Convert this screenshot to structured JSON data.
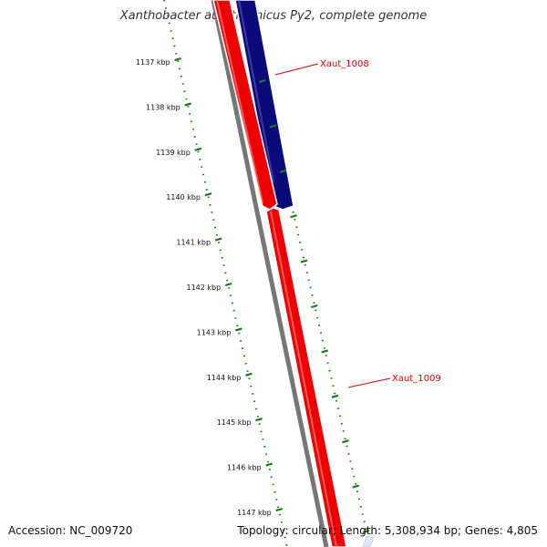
{
  "title": "Xanthobacter autotrophicus Py2, complete genome",
  "footer": {
    "accession": "Accession: NC_009720",
    "summary": "Topology: circular; Length: 5,308,934 bp; Genes: 4,805"
  },
  "ticks": [
    "1137 kbp",
    "1138 kbp",
    "1139 kbp",
    "1140 kbp",
    "1141 kbp",
    "1142 kbp",
    "1143 kbp",
    "1144 kbp",
    "1145 kbp",
    "1146 kbp",
    "1147 kbp"
  ],
  "genes": [
    {
      "name": "Xaut_1008",
      "strand": "reverse",
      "color": "#0a0a7a"
    },
    {
      "name": "Xaut_1009",
      "strand": "forward",
      "color": "#ee0000"
    }
  ],
  "colors": {
    "backbone": "#777777",
    "tick_marks": "#1a7a1a",
    "gene_label": "#dd0000",
    "forward_gene": "#ee0000",
    "reverse_gene": "#0a0a7a"
  }
}
